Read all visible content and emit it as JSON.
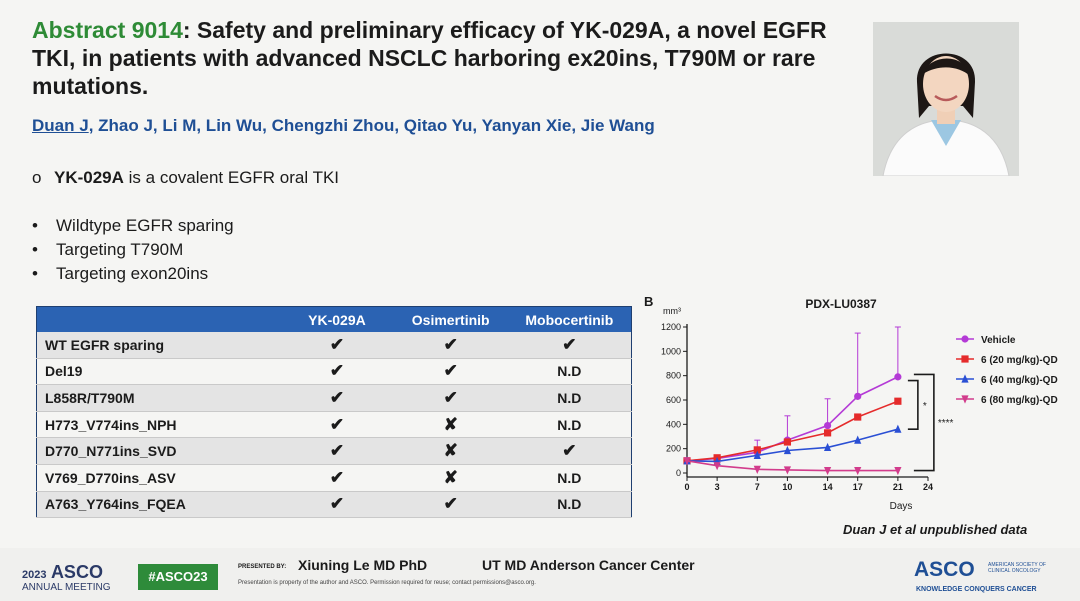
{
  "title": {
    "abstract_label": "Abstract 9014",
    "text": ": Safety and preliminary efficacy of YK-029A, a novel EGFR TKI, in patients with advanced NSCLC harboring ex20ins, T790M or rare mutations."
  },
  "authors": {
    "first": "Duan J",
    "rest": ", Zhao J, Li M, Lin Wu, Chengzhi Zhou, Qitao Yu, Yanyan Xie, Jie Wang"
  },
  "lead": {
    "marker": "o",
    "drug": "YK-029A",
    "text": " is a covalent EGFR oral TKI"
  },
  "bullets": [
    "Wildtype EGFR sparing",
    "Targeting T790M",
    "Targeting exon20ins"
  ],
  "table": {
    "headers": [
      "",
      "YK-029A",
      "Osimertinib",
      "Mobocertinib"
    ],
    "rows": [
      {
        "label": "WT EGFR sparing",
        "cells": [
          "check",
          "check",
          "check"
        ]
      },
      {
        "label": "Del19",
        "cells": [
          "check",
          "check",
          "N.D"
        ]
      },
      {
        "label": "L858R/T790M",
        "cells": [
          "check",
          "check",
          "N.D"
        ]
      },
      {
        "label": "H773_V774ins_NPH",
        "cells": [
          "check",
          "cross",
          "N.D"
        ]
      },
      {
        "label": "D770_N771ins_SVD",
        "cells": [
          "check",
          "cross",
          "check"
        ]
      },
      {
        "label": "V769_D770ins_ASV",
        "cells": [
          "check",
          "cross",
          "N.D"
        ]
      },
      {
        "label": "A763_Y764ins_FQEA",
        "cells": [
          "check",
          "check",
          "N.D"
        ]
      }
    ]
  },
  "symbols": {
    "check": "✔",
    "cross": "✘"
  },
  "chart_data": {
    "type": "line",
    "panel_label": "B",
    "title": "PDX-LU0387",
    "ylabel": "mm³",
    "xlabel": "Days",
    "x": [
      0,
      3,
      7,
      10,
      14,
      17,
      21
    ],
    "xticks": [
      0,
      3,
      7,
      10,
      14,
      17,
      21,
      24
    ],
    "yticks": [
      0,
      200,
      400,
      600,
      800,
      1000,
      1200
    ],
    "xlim": [
      0,
      24
    ],
    "ylim": [
      0,
      1200
    ],
    "series": [
      {
        "name": "Vehicle",
        "color": "#b43ad6",
        "marker": "circle",
        "values": [
          100,
          120,
          170,
          270,
          390,
          630,
          790
        ],
        "err": [
          20,
          20,
          100,
          200,
          220,
          520,
          450
        ]
      },
      {
        "name": "6 (20 mg/kg)-QD",
        "color": "#e52b2b",
        "marker": "square",
        "values": [
          100,
          125,
          190,
          255,
          330,
          460,
          590
        ],
        "err": [
          0,
          0,
          0,
          0,
          0,
          0,
          0
        ]
      },
      {
        "name": "6 (40 mg/kg)-QD",
        "color": "#2a4fd4",
        "marker": "triangle",
        "values": [
          100,
          95,
          145,
          185,
          210,
          270,
          360
        ],
        "err": [
          0,
          0,
          0,
          0,
          0,
          0,
          0
        ]
      },
      {
        "name": "6 (80 mg/kg)-QD",
        "color": "#d23c8c",
        "marker": "triangle-down",
        "values": [
          100,
          60,
          30,
          25,
          20,
          20,
          20
        ],
        "err": [
          0,
          0,
          0,
          0,
          0,
          0,
          0
        ]
      }
    ],
    "annotations": [
      "*",
      "****"
    ]
  },
  "citation": "Duan J et al unpublished data",
  "footer": {
    "year": "2023",
    "meeting": "ASCO",
    "meeting_sub": "ANNUAL MEETING",
    "hashtag": "#ASCO23",
    "presented_by": "PRESENTED BY:",
    "presenter": "Xiuning Le MD PhD",
    "institution": "UT MD Anderson Cancer Center",
    "notice": "Presentation is property of the author and ASCO. Permission required for reuse; contact permissions@asco.org.",
    "logo": "ASCO",
    "logo_society": "AMERICAN SOCIETY OF CLINICAL ONCOLOGY",
    "logo_tagline": "KNOWLEDGE CONQUERS CANCER"
  }
}
